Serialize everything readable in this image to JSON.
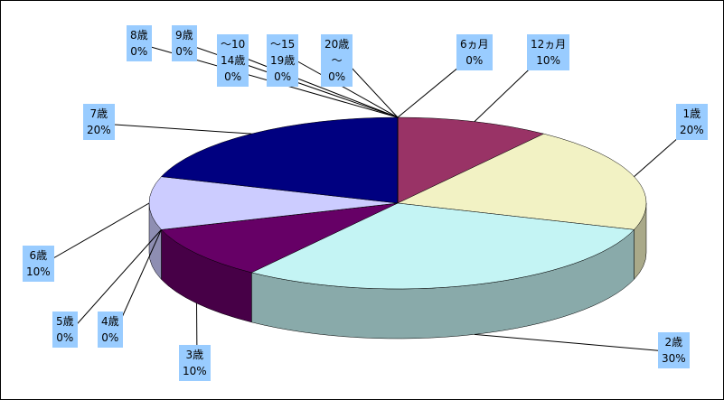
{
  "chart_data": {
    "type": "pie3d",
    "categories": [
      "6ヵ月",
      "12ヵ月",
      "1歳",
      "2歳",
      "3歳",
      "4歳",
      "5歳",
      "6歳",
      "7歳",
      "8歳",
      "9歳",
      "～10\n14歳",
      "～15\n19歳",
      "20歳\n～"
    ],
    "values": [
      0,
      10,
      20,
      30,
      10,
      0,
      0,
      10,
      20,
      0,
      0,
      0,
      0,
      0
    ],
    "value_labels": [
      "0%",
      "10%",
      "20%",
      "30%",
      "10%",
      "0%",
      "0%",
      "10%",
      "20%",
      "0%",
      "0%",
      "0%",
      "0%",
      "0%"
    ],
    "colors": [
      "#9999ff",
      "#993366",
      "#f2f2c4",
      "#c4f4f4",
      "#660066",
      "#ff8080",
      "#0066cc",
      "#ccccff",
      "#000080",
      "#ff00ff",
      "#ffff00",
      "#00ffff",
      "#800080",
      "#800000"
    ]
  }
}
